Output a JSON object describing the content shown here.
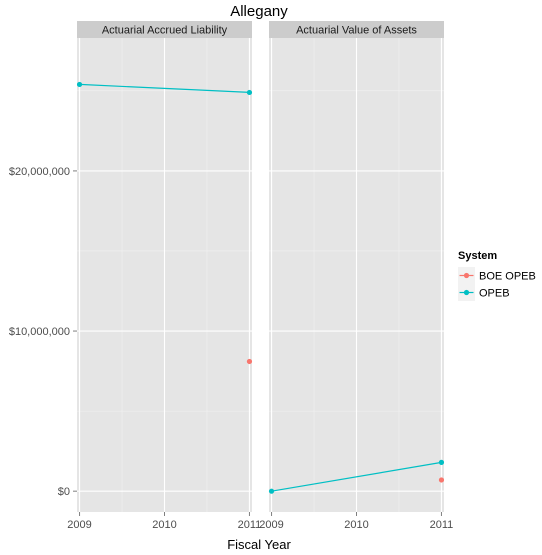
{
  "chart_data": {
    "type": "line",
    "title": "Allegany",
    "xlabel": "Fiscal Year",
    "ylabel": "",
    "x_ticks": [
      2009,
      2010,
      2011
    ],
    "xlim": [
      2008.97,
      2011.03
    ],
    "ylim": [
      -1300000,
      28300000
    ],
    "y_ticks": [
      {
        "value": 0,
        "label": "$0"
      },
      {
        "value": 10000000,
        "label": "$10,000,000"
      },
      {
        "value": 20000000,
        "label": "$20,000,000"
      }
    ],
    "legend": {
      "title": "System",
      "position": "right",
      "entries": [
        {
          "label": "BOE OPEB",
          "color": "#F8766D"
        },
        {
          "label": "OPEB",
          "color": "#00BFC4"
        }
      ]
    },
    "panels": [
      {
        "strip": "Actuarial Accrued Liability",
        "series": [
          {
            "name": "BOE OPEB",
            "color": "#F8766D",
            "points": [
              {
                "x": 2011,
                "y": 8100000
              }
            ]
          },
          {
            "name": "OPEB",
            "color": "#00BFC4",
            "points": [
              {
                "x": 2009,
                "y": 25400000
              },
              {
                "x": 2011,
                "y": 24900000
              }
            ]
          }
        ]
      },
      {
        "strip": "Actuarial Value of Assets",
        "series": [
          {
            "name": "BOE OPEB",
            "color": "#F8766D",
            "points": [
              {
                "x": 2011,
                "y": 700000
              }
            ]
          },
          {
            "name": "OPEB",
            "color": "#00BFC4",
            "points": [
              {
                "x": 2009,
                "y": 0
              },
              {
                "x": 2011,
                "y": 1800000
              }
            ]
          }
        ]
      }
    ]
  }
}
